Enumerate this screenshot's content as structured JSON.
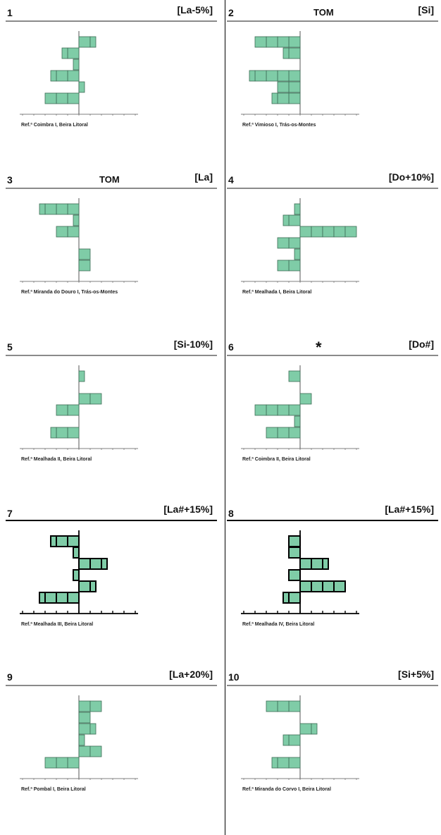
{
  "theme": {
    "bar_fill": "#7fcca7",
    "bar_stroke": "#3d6b55",
    "bar_stroke_bold": "#000000",
    "axis": "#555555"
  },
  "chart_data": [
    {
      "type": "bar",
      "orientation": "horizontal",
      "number": "1",
      "tom": "",
      "tag": "[La-5%]",
      "ref": "Ref.ª Coimbra I, Beira Litoral",
      "values": [
        1.5,
        -1.5,
        -0.5,
        -2.5,
        0.5,
        -3.0
      ],
      "xlim": [
        -5,
        5
      ],
      "bold": false
    },
    {
      "type": "bar",
      "orientation": "horizontal",
      "number": "2",
      "tom": "TOM",
      "tag": "[Si]",
      "ref": "Ref.ª Vimioso I, Trás-os-Montes",
      "values": [
        -4.0,
        -1.5,
        0,
        -4.5,
        -2.0,
        -2.5
      ],
      "xlim": [
        -5,
        5
      ],
      "bold": false
    },
    {
      "type": "bar",
      "orientation": "horizontal",
      "number": "3",
      "tom": "TOM",
      "tag": "[La]",
      "ref": "Ref.ª Miranda do Douro I, Trás-os-Montes",
      "values": [
        -3.5,
        -0.5,
        -2.0,
        0,
        1.0,
        1.0
      ],
      "xlim": [
        -5,
        5
      ],
      "bold": false
    },
    {
      "type": "bar",
      "orientation": "horizontal",
      "number": "4",
      "tom": "",
      "tag": "[Do+10%]",
      "ref": "Ref.ª Mealhada I, Beira Litoral",
      "values": [
        -0.5,
        -1.5,
        5.0,
        -2.0,
        -0.5,
        -2.0
      ],
      "xlim": [
        -5,
        5
      ],
      "bold": false
    },
    {
      "type": "bar",
      "orientation": "horizontal",
      "number": "5",
      "tom": "",
      "tag": "[Si-10%]",
      "ref": "Ref.ª Mealhada II, Beira Litoral",
      "values": [
        0.5,
        0,
        2.0,
        -2.0,
        0,
        -2.5
      ],
      "xlim": [
        -5,
        5
      ],
      "bold": false
    },
    {
      "type": "bar",
      "orientation": "horizontal",
      "number": "6",
      "tom": "*",
      "tag": "[Do#]",
      "ref": "Ref.ª Coimbra II, Beira Litoral",
      "values": [
        -1.0,
        0,
        1.0,
        -4.0,
        -0.5,
        -3.0
      ],
      "xlim": [
        -5,
        5
      ],
      "bold": false
    },
    {
      "type": "bar",
      "orientation": "horizontal",
      "number": "7",
      "tom": "",
      "tag": "[La#+15%]",
      "ref": "Ref.ª Mealhada III, Beira Litoral",
      "values": [
        -2.5,
        -0.5,
        2.5,
        -0.5,
        1.5,
        -3.5
      ],
      "xlim": [
        -5,
        5
      ],
      "bold": true
    },
    {
      "type": "bar",
      "orientation": "horizontal",
      "number": "8",
      "tom": "",
      "tag": "[La#+15%]",
      "ref": "Ref.ª Mealhada IV, Beira Litoral",
      "values": [
        -1.0,
        -1.0,
        2.5,
        -1.0,
        4.0,
        -1.5
      ],
      "xlim": [
        -5,
        5
      ],
      "bold": true
    },
    {
      "type": "bar",
      "orientation": "horizontal",
      "number": "9",
      "tom": "",
      "tag": "[La+20%]",
      "ref": "Ref.ª Pombal I, Beira Litoral",
      "values": [
        2.0,
        1.0,
        1.5,
        0.5,
        2.0,
        -3.0
      ],
      "xlim": [
        -5,
        5
      ],
      "bold": false
    },
    {
      "type": "bar",
      "orientation": "horizontal",
      "number": "10",
      "tom": "",
      "tag": "[Si+5%]",
      "ref": "Ref.ª Miranda do Corvo I, Beira Litoral",
      "values": [
        -3.0,
        0,
        1.5,
        -1.5,
        0,
        -2.5
      ],
      "xlim": [
        -5,
        5
      ],
      "bold": false
    }
  ]
}
